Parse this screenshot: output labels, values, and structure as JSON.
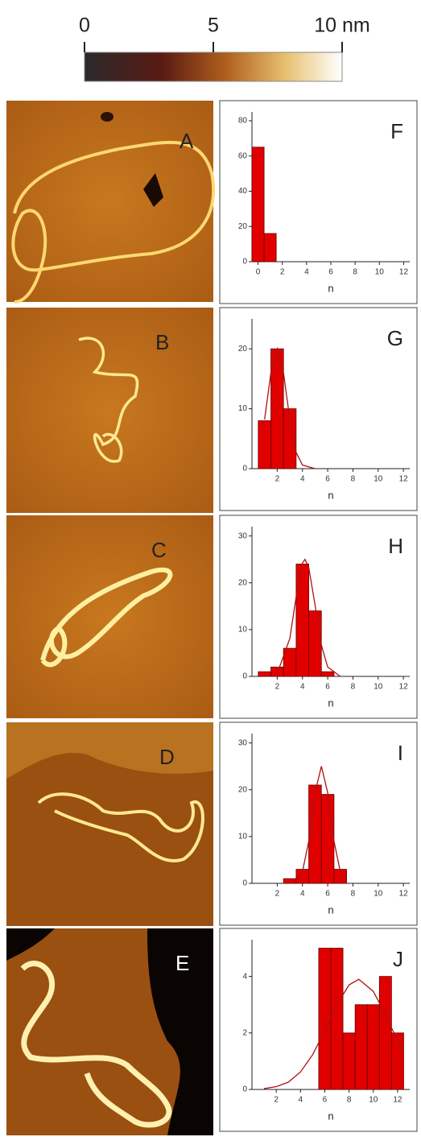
{
  "colorbar": {
    "lim": [
      0,
      10
    ],
    "ticks": [
      0,
      5,
      {
        "value": 10,
        "label": "10 nm"
      }
    ]
  },
  "images": [
    {
      "label": "A"
    },
    {
      "label": "B"
    },
    {
      "label": "C"
    },
    {
      "label": "D"
    },
    {
      "label": "E"
    }
  ],
  "chart_data": [
    {
      "type": "bar",
      "panel_label": "F",
      "xlabel": "n",
      "color": "#e00000",
      "x": [
        0,
        1
      ],
      "values": [
        65,
        16
      ],
      "xlim": [
        -0.5,
        12.5
      ],
      "xticks": [
        0,
        2,
        4,
        6,
        8,
        10,
        12
      ],
      "ylim": [
        0,
        85
      ],
      "yticks": [
        0,
        20,
        40,
        60,
        80
      ]
    },
    {
      "type": "bar",
      "panel_label": "G",
      "xlabel": "n",
      "color": "#e00000",
      "x": [
        1,
        2,
        3
      ],
      "values": [
        8,
        20,
        10
      ],
      "fit": {
        "color": "#b01010",
        "x": [
          1,
          1.5,
          2,
          2.5,
          3,
          3.5,
          4,
          5
        ],
        "values": [
          8.2,
          16,
          20,
          16,
          8.2,
          2.7,
          0.6,
          0
        ]
      },
      "xlim": [
        0,
        12.5
      ],
      "xticks": [
        2,
        4,
        6,
        8,
        10,
        12
      ],
      "ylim": [
        0,
        25
      ],
      "yticks": [
        0,
        10,
        20
      ]
    },
    {
      "type": "bar",
      "panel_label": "H",
      "xlabel": "n",
      "color": "#e00000",
      "x": [
        1,
        2,
        3,
        4,
        5,
        6
      ],
      "values": [
        1,
        2,
        6,
        24,
        14,
        1
      ],
      "fit": {
        "color": "#b01010",
        "x": [
          2,
          3,
          3.5,
          4,
          4.2,
          4.5,
          5,
          5.5,
          6,
          7
        ],
        "values": [
          0.6,
          8.1,
          17,
          24.2,
          25,
          23.3,
          15.2,
          6.7,
          2,
          0
        ]
      },
      "xlim": [
        0,
        12.5
      ],
      "xticks": [
        2,
        4,
        6,
        8,
        10,
        12
      ],
      "ylim": [
        0,
        32
      ],
      "yticks": [
        0,
        10,
        20,
        30
      ]
    },
    {
      "type": "bar",
      "panel_label": "I",
      "xlabel": "n",
      "color": "#e00000",
      "x": [
        3,
        4,
        5,
        6,
        7
      ],
      "values": [
        1,
        3,
        21,
        19,
        3
      ],
      "fit": {
        "color": "#b01010",
        "x": [
          3.5,
          4,
          4.5,
          5,
          5.5,
          6,
          6.5,
          7,
          7.5
        ],
        "values": [
          0.4,
          2.5,
          9,
          19.4,
          25,
          19.4,
          9,
          2.5,
          0.4
        ]
      },
      "xlim": [
        0,
        12.5
      ],
      "xticks": [
        2,
        4,
        6,
        8,
        10,
        12
      ],
      "ylim": [
        0,
        32
      ],
      "yticks": [
        0,
        10,
        20,
        30
      ]
    },
    {
      "type": "bar",
      "panel_label": "J",
      "xlabel": "n",
      "color": "#e00000",
      "x": [
        6,
        7,
        8,
        9,
        10,
        11,
        12
      ],
      "values": [
        5,
        5,
        2,
        3,
        3,
        4,
        2
      ],
      "fit": {
        "color": "#b01010",
        "x": [
          1,
          2,
          3,
          4,
          5,
          6,
          7,
          8,
          8.8,
          10,
          11,
          12,
          12.5
        ],
        "values": [
          0.03,
          0.1,
          0.26,
          0.62,
          1.23,
          2.08,
          3,
          3.7,
          3.9,
          3.47,
          2.65,
          1.72,
          1.3
        ]
      },
      "xlim": [
        0,
        13
      ],
      "xticks": [
        2,
        4,
        6,
        8,
        10,
        12
      ],
      "ylim": [
        0,
        5.3
      ],
      "yticks": [
        0,
        2,
        4
      ]
    }
  ]
}
